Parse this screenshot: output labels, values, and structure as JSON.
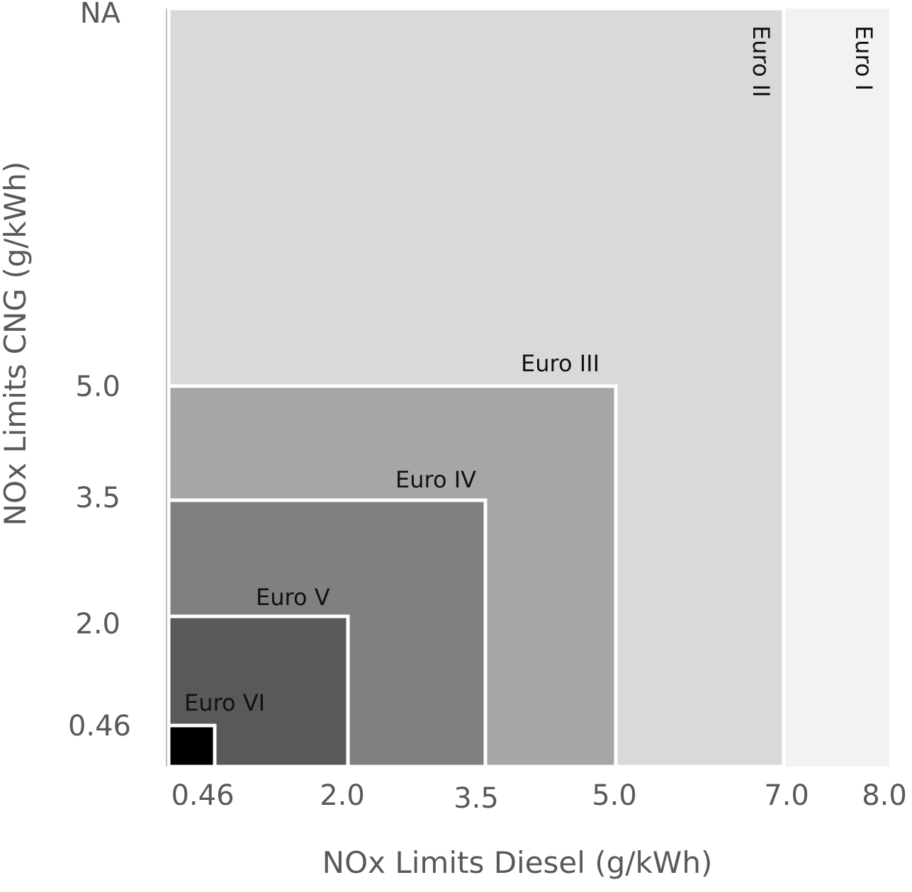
{
  "chart_data": {
    "type": "nested-rectangles",
    "title": "",
    "xlabel": "NOx Limits Diesel (g/kWh)",
    "ylabel": "NOx Limits CNG (g/kWh)",
    "x_ticks": [
      "0.46",
      "2.0",
      "3.5",
      "5.0",
      "7.0",
      "8.0"
    ],
    "y_ticks": [
      "0.46",
      "2.0",
      "3.5",
      "5.0",
      "NA"
    ],
    "regions": [
      {
        "name": "Euro I",
        "diesel": 8.0,
        "cng": "NA",
        "color": "#f2f2f2"
      },
      {
        "name": "Euro II",
        "diesel": 7.0,
        "cng": "NA",
        "color": "#d9d9d9"
      },
      {
        "name": "Euro III",
        "diesel": 5.0,
        "cng": 5.0,
        "color": "#a6a6a6"
      },
      {
        "name": "Euro IV",
        "diesel": 3.5,
        "cng": 3.5,
        "color": "#808080"
      },
      {
        "name": "Euro V",
        "diesel": 2.0,
        "cng": 2.0,
        "color": "#595959"
      },
      {
        "name": "Euro VI",
        "diesel": 0.46,
        "cng": 0.46,
        "color": "#000000"
      }
    ]
  }
}
